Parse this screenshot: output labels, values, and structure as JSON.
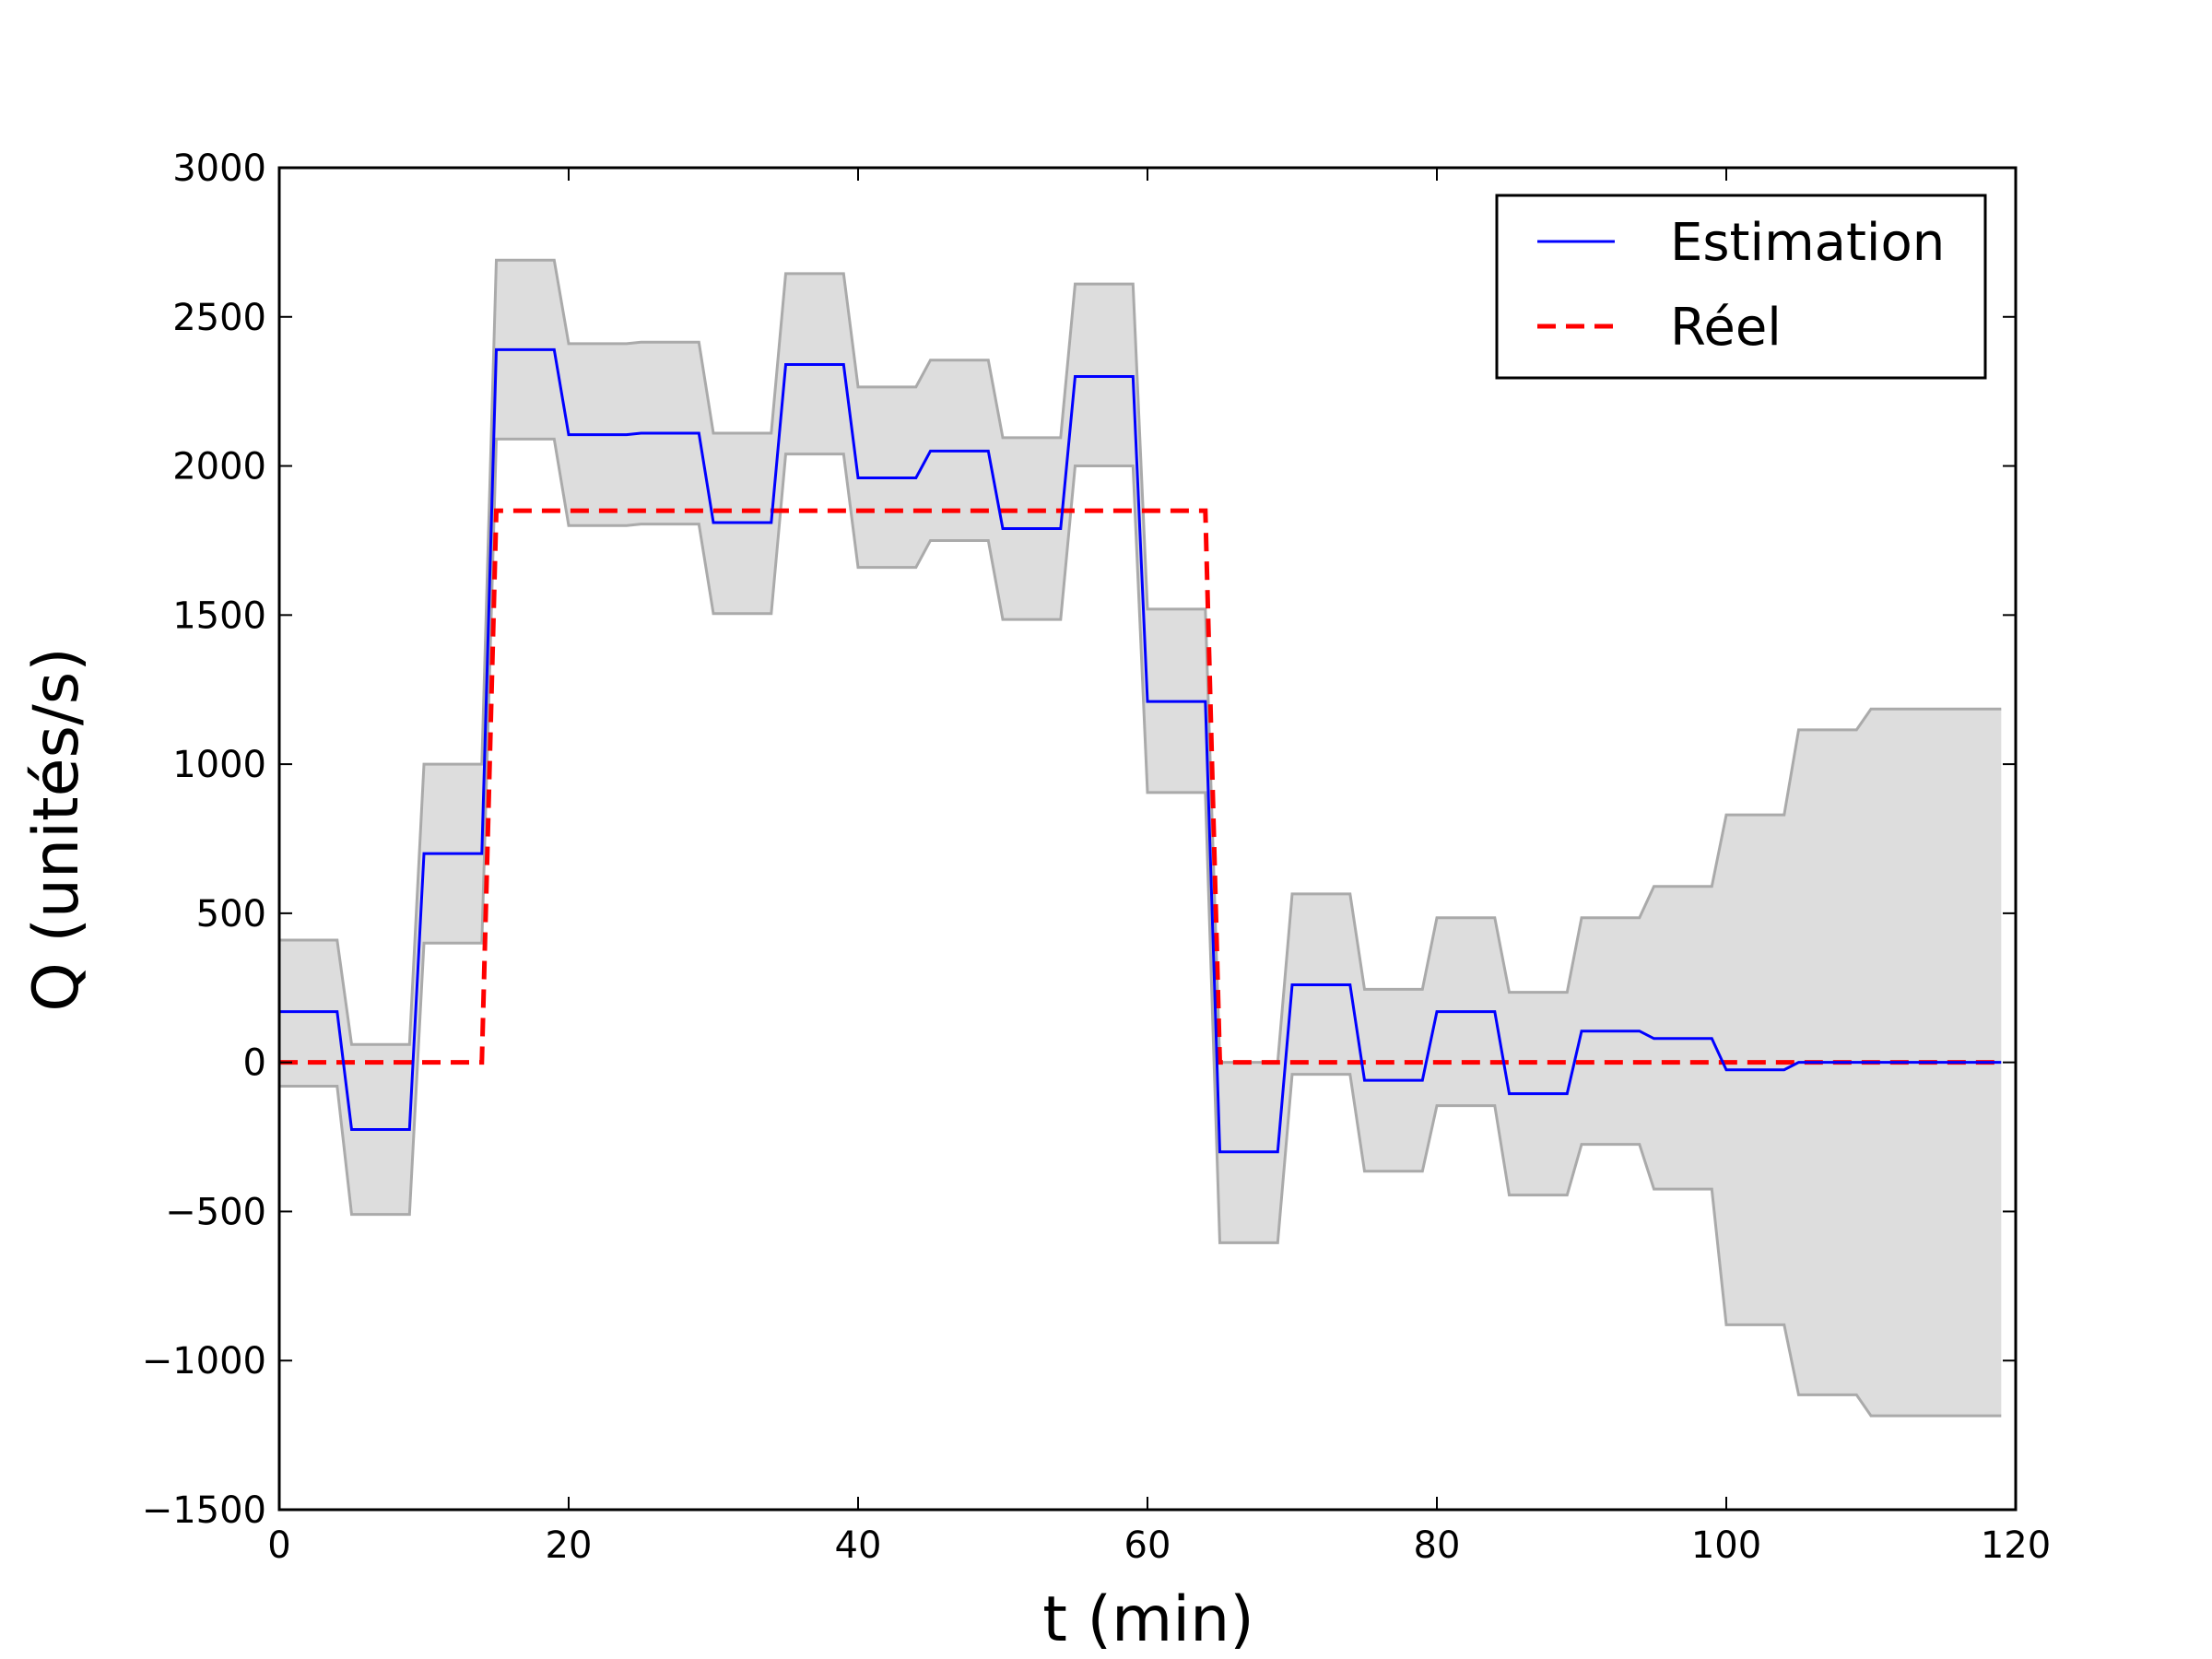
{
  "chart_data": {
    "type": "line",
    "title": "",
    "xlabel": "t (min)",
    "ylabel": "Q (unités/s)",
    "xlim": [
      0,
      120
    ],
    "ylim": [
      -1500,
      3000
    ],
    "xticks": [
      0,
      20,
      40,
      60,
      80,
      100,
      120
    ],
    "yticks": [
      -1500,
      -1000,
      -500,
      0,
      500,
      1000,
      1500,
      2000,
      2500,
      3000
    ],
    "xtick_labels": [
      "0",
      "20",
      "40",
      "60",
      "80",
      "100",
      "120"
    ],
    "ytick_labels": [
      "−1500",
      "−1000",
      "−500",
      "0",
      "500",
      "1000",
      "1500",
      "2000",
      "2500",
      "3000"
    ],
    "grid": false,
    "legend_position": "top-right",
    "colors": {
      "estimation": "#0000ff",
      "reel": "#ff0000",
      "band_fill": "#dddddd",
      "band_edge": "#aaaaaa"
    },
    "series": [
      {
        "name": "Estimation",
        "style": "solid",
        "color": "#0000ff",
        "x": [
          0,
          4,
          5,
          9,
          10,
          14,
          15,
          19,
          20,
          24,
          25,
          29,
          30,
          34,
          35,
          39,
          40,
          44,
          45,
          49,
          50,
          54,
          55,
          59,
          60,
          64,
          65,
          69,
          70,
          74,
          75,
          79,
          80,
          84,
          85,
          89,
          90,
          94,
          95,
          99,
          100,
          104,
          105,
          109,
          110,
          119
        ],
        "y": [
          170,
          170,
          -225,
          -225,
          700,
          700,
          2390,
          2390,
          2105,
          2105,
          2110,
          2110,
          1810,
          1810,
          2340,
          2340,
          1960,
          1960,
          2050,
          2050,
          1790,
          1790,
          2300,
          2300,
          1210,
          1210,
          -300,
          -300,
          260,
          260,
          -60,
          -60,
          170,
          170,
          -105,
          -105,
          105,
          105,
          80,
          80,
          -25,
          -25,
          0,
          0,
          0,
          0
        ]
      },
      {
        "name": "Réel",
        "style": "dashed",
        "color": "#ff0000",
        "x": [
          0,
          14,
          15,
          64,
          65,
          119
        ],
        "y": [
          0,
          0,
          1850,
          1850,
          0,
          0
        ]
      }
    ],
    "uncertainty_band": {
      "x": [
        0,
        4,
        5,
        9,
        10,
        14,
        15,
        19,
        20,
        24,
        25,
        29,
        30,
        34,
        35,
        39,
        40,
        44,
        45,
        49,
        50,
        54,
        55,
        59,
        60,
        64,
        65,
        69,
        70,
        74,
        75,
        79,
        80,
        84,
        85,
        89,
        90,
        94,
        95,
        99,
        100,
        104,
        105,
        109,
        110,
        119
      ],
      "upper": [
        410,
        410,
        60,
        60,
        1000,
        1000,
        2690,
        2690,
        2410,
        2410,
        2415,
        2415,
        2110,
        2110,
        2645,
        2645,
        2265,
        2265,
        2355,
        2355,
        2095,
        2095,
        2610,
        2610,
        1520,
        1520,
        0,
        0,
        565,
        565,
        245,
        245,
        485,
        485,
        235,
        235,
        485,
        485,
        590,
        590,
        830,
        830,
        1115,
        1115,
        1185,
        1185
      ],
      "lower": [
        -80,
        -80,
        -510,
        -510,
        400,
        400,
        2090,
        2090,
        1800,
        1800,
        1805,
        1805,
        1505,
        1505,
        2040,
        2040,
        1660,
        1660,
        1750,
        1750,
        1485,
        1485,
        2000,
        2000,
        905,
        905,
        -605,
        -605,
        -40,
        -40,
        -365,
        -365,
        -145,
        -145,
        -445,
        -445,
        -275,
        -275,
        -425,
        -425,
        -880,
        -880,
        -1115,
        -1115,
        -1185,
        -1185
      ]
    }
  }
}
